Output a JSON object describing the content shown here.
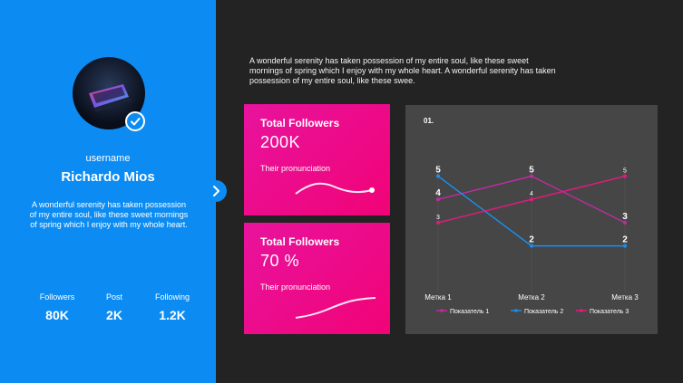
{
  "profile": {
    "username_label": "username",
    "name": "Richardo Mios",
    "bio": "A wonderful serenity has taken possession of my entire soul, like these sweet mornings of spring which I enjoy with my whole heart.",
    "stats": [
      {
        "label": "Followers",
        "value": "80K"
      },
      {
        "label": "Post",
        "value": "2K"
      },
      {
        "label": "Following",
        "value": "1.2K"
      }
    ]
  },
  "intro_text": "A wonderful serenity has taken possession of my entire soul, like these sweet mornings of spring which I enjoy with my whole heart. A wonderful serenity has taken possession of my entire soul, like these swee.",
  "cards": [
    {
      "title": "Total Followers",
      "value": "200K",
      "subtitle": "Their pronunciation"
    },
    {
      "title": "Total Followers",
      "value": "70 %",
      "subtitle": "Their pronunciation"
    }
  ],
  "colors": {
    "sidebar": "#0c8cf2",
    "background": "#232323",
    "card_gradient_start": "#e8139d",
    "card_gradient_end": "#f10377",
    "chart_panel": "#464646"
  },
  "icons": {
    "avatar_image": "laptop-photo",
    "verified": "checkmark-icon",
    "toggle": "chevron-right-icon"
  },
  "chart_data": {
    "type": "line",
    "title": "01.",
    "categories": [
      "Метка 1",
      "Метка 2",
      "Метка 3"
    ],
    "series": [
      {
        "name": "Показатель 1",
        "values": [
          4,
          5,
          3
        ],
        "color": "#c02ba3"
      },
      {
        "name": "Показатель 2",
        "values": [
          5,
          2,
          2
        ],
        "color": "#1a8ff0"
      },
      {
        "name": "Показатель 3",
        "values": [
          3,
          4,
          5
        ],
        "color": "#e8197f"
      }
    ],
    "ylim": [
      0,
      6.5
    ],
    "grid": false,
    "legend": "bottom",
    "data_labels": true
  }
}
